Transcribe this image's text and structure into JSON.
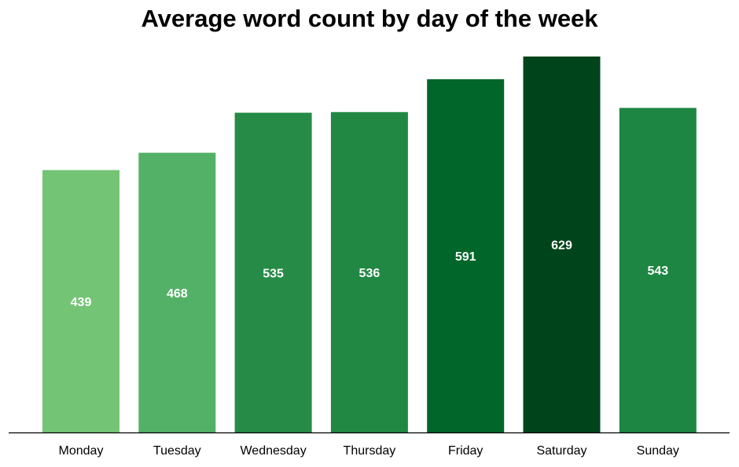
{
  "chart_data": {
    "type": "bar",
    "title": "Average word count by day of the week",
    "xlabel": "",
    "ylabel": "",
    "categories": [
      "Monday",
      "Tuesday",
      "Wednesday",
      "Thursday",
      "Friday",
      "Saturday",
      "Sunday"
    ],
    "values": [
      439,
      468,
      535,
      536,
      591,
      629,
      543
    ],
    "data_labels": [
      "439",
      "468",
      "535",
      "536",
      "591",
      "629",
      "543"
    ],
    "colors": [
      "#74c476",
      "#53b167",
      "#258b46",
      "#218844",
      "#00662a",
      "#00441b",
      "#1c8642"
    ],
    "label_color": "#ffffff",
    "ylim": [
      0,
      629
    ],
    "grid": false,
    "legend": "none",
    "y_axis_visible": false
  }
}
